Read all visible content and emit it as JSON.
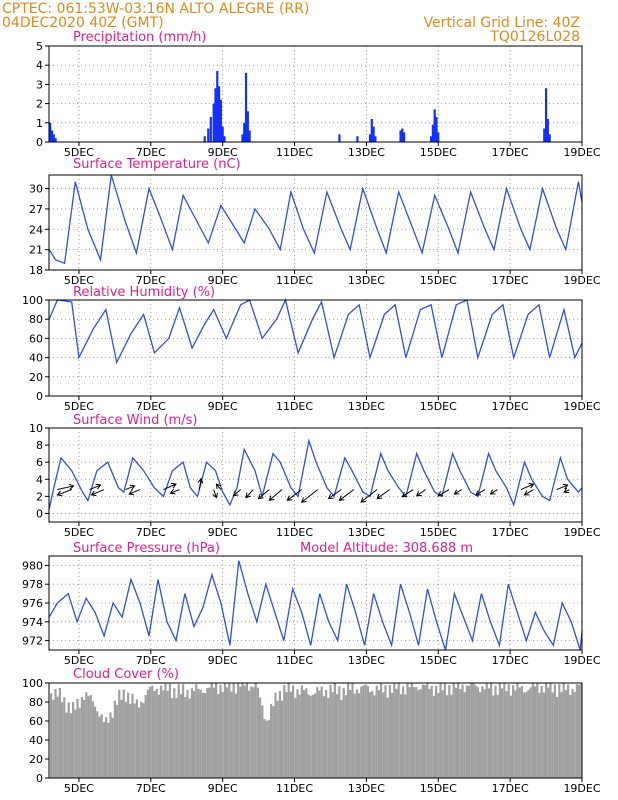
{
  "header": {
    "line1_left": "CPTEC:   061:53W-03:16N   ALTO ALEGRE (RR)",
    "line2_left": "04DEC2020 40Z (GMT)",
    "line1_right": "Vertical Grid Line: 40Z",
    "line2_right": "TQ0126L028"
  },
  "colors": {
    "header": "#e08a1e",
    "titles": "#e0208c",
    "series": "#3050e0",
    "bars": "#1430ff",
    "cloud": "#a0a0a0"
  },
  "chart_data": [
    {
      "type": "bar",
      "title": "Precipitation (mm/h)",
      "x_start_day": 4.167,
      "x_end_day": 19.0,
      "x_tick_labels": [
        "5DEC",
        "7DEC",
        "9DEC",
        "11DEC",
        "13DEC",
        "15DEC",
        "17DEC",
        "19DEC"
      ],
      "y_ticks": [
        0,
        1,
        2,
        3,
        4,
        5
      ],
      "ylim": [
        0,
        5
      ],
      "grid": true,
      "bars": [
        [
          4.2,
          1.0
        ],
        [
          4.25,
          0.6
        ],
        [
          4.3,
          0.4
        ],
        [
          4.35,
          0.2
        ],
        [
          8.5,
          0.3
        ],
        [
          8.6,
          0.7
        ],
        [
          8.67,
          1.3
        ],
        [
          8.75,
          2.0
        ],
        [
          8.8,
          2.8
        ],
        [
          8.85,
          3.7
        ],
        [
          8.9,
          2.9
        ],
        [
          8.95,
          2.2
        ],
        [
          9.0,
          0.8
        ],
        [
          9.05,
          0.3
        ],
        [
          9.55,
          0.4
        ],
        [
          9.6,
          1.0
        ],
        [
          9.65,
          3.6
        ],
        [
          9.7,
          1.6
        ],
        [
          9.75,
          0.6
        ],
        [
          12.25,
          0.4
        ],
        [
          12.75,
          0.3
        ],
        [
          13.1,
          0.4
        ],
        [
          13.15,
          1.2
        ],
        [
          13.2,
          0.8
        ],
        [
          13.25,
          0.3
        ],
        [
          13.95,
          0.6
        ],
        [
          14.0,
          0.7
        ],
        [
          14.05,
          0.5
        ],
        [
          14.8,
          0.3
        ],
        [
          14.85,
          0.9
        ],
        [
          14.9,
          1.7
        ],
        [
          14.95,
          1.3
        ],
        [
          15.0,
          0.5
        ],
        [
          17.95,
          0.7
        ],
        [
          18.0,
          2.8
        ],
        [
          18.05,
          1.2
        ],
        [
          18.1,
          0.4
        ]
      ]
    },
    {
      "type": "line",
      "title": "Surface Temperature (nC)",
      "x_tick_labels": [
        "5DEC",
        "7DEC",
        "9DEC",
        "11DEC",
        "13DEC",
        "15DEC",
        "17DEC",
        "19DEC"
      ],
      "y_ticks": [
        18,
        21,
        24,
        27,
        30
      ],
      "ylim": [
        18,
        32
      ],
      "grid": true,
      "x": [
        4.17,
        4.35,
        4.6,
        4.9,
        5.25,
        5.6,
        5.9,
        6.3,
        6.6,
        6.95,
        7.25,
        7.6,
        7.9,
        8.3,
        8.6,
        8.95,
        9.25,
        9.6,
        9.9,
        10.3,
        10.6,
        10.9,
        11.25,
        11.55,
        11.9,
        12.3,
        12.55,
        12.9,
        13.3,
        13.55,
        13.9,
        14.3,
        14.55,
        14.9,
        15.3,
        15.55,
        15.9,
        16.3,
        16.55,
        16.9,
        17.3,
        17.55,
        17.9,
        18.3,
        18.55,
        18.9,
        19.0
      ],
      "values": [
        21,
        19.5,
        19,
        31,
        24,
        19.5,
        32,
        25,
        20.5,
        30,
        26,
        21,
        29,
        25,
        22,
        27.5,
        25,
        22,
        27,
        24,
        21,
        29.5,
        24,
        20.5,
        29.5,
        24,
        21,
        30,
        24,
        20.5,
        29.5,
        24,
        20.5,
        29,
        24,
        20.5,
        29.5,
        24,
        21,
        30,
        24,
        21,
        30,
        24,
        21,
        31,
        28
      ]
    },
    {
      "type": "line",
      "title": "Relative Humidity (%)",
      "x_tick_labels": [
        "5DEC",
        "7DEC",
        "9DEC",
        "11DEC",
        "13DEC",
        "15DEC",
        "17DEC",
        "19DEC"
      ],
      "y_ticks": [
        0,
        20,
        40,
        60,
        80,
        100
      ],
      "ylim": [
        0,
        100
      ],
      "grid": true,
      "x": [
        4.17,
        4.4,
        4.8,
        5.0,
        5.4,
        5.75,
        6.05,
        6.45,
        6.8,
        7.1,
        7.5,
        7.8,
        8.15,
        8.5,
        8.75,
        9.1,
        9.5,
        9.75,
        10.1,
        10.5,
        10.75,
        11.1,
        11.5,
        11.75,
        12.1,
        12.5,
        12.8,
        13.1,
        13.5,
        13.8,
        14.1,
        14.5,
        14.8,
        15.1,
        15.5,
        15.8,
        16.1,
        16.5,
        16.8,
        17.1,
        17.5,
        17.8,
        18.1,
        18.5,
        18.8,
        19.0
      ],
      "values": [
        80,
        100,
        98,
        40,
        70,
        90,
        35,
        65,
        85,
        45,
        60,
        92,
        50,
        75,
        90,
        60,
        95,
        100,
        60,
        80,
        100,
        45,
        80,
        98,
        40,
        85,
        95,
        40,
        85,
        95,
        40,
        90,
        95,
        40,
        95,
        100,
        40,
        85,
        95,
        40,
        85,
        95,
        40,
        90,
        40,
        55
      ]
    },
    {
      "type": "line",
      "title": "Surface Wind (m/s)",
      "x_tick_labels": [
        "5DEC",
        "7DEC",
        "9DEC",
        "11DEC",
        "13DEC",
        "15DEC",
        "17DEC",
        "19DEC"
      ],
      "y_ticks": [
        0,
        2,
        4,
        6,
        8,
        10
      ],
      "ylim": [
        -1,
        10
      ],
      "grid": true,
      "x": [
        4.17,
        4.3,
        4.5,
        4.8,
        5.1,
        5.25,
        5.5,
        5.8,
        6.1,
        6.25,
        6.5,
        6.8,
        7.1,
        7.35,
        7.6,
        7.9,
        8.1,
        8.3,
        8.55,
        8.8,
        9.0,
        9.2,
        9.4,
        9.6,
        9.9,
        10.1,
        10.4,
        10.6,
        10.9,
        11.1,
        11.4,
        11.6,
        11.9,
        12.1,
        12.4,
        12.6,
        12.9,
        13.1,
        13.4,
        13.6,
        13.9,
        14.1,
        14.4,
        14.6,
        14.9,
        15.1,
        15.4,
        15.6,
        15.9,
        16.1,
        16.4,
        16.6,
        16.9,
        17.1,
        17.4,
        17.6,
        17.9,
        18.1,
        18.4,
        18.6,
        18.9,
        19.0
      ],
      "values": [
        0.5,
        3,
        6.5,
        5,
        2.5,
        1.5,
        5,
        6,
        3,
        2.5,
        6.5,
        5,
        3,
        2,
        5,
        6,
        3,
        2,
        6,
        5,
        2.5,
        1,
        3,
        7.5,
        5,
        2,
        7,
        6,
        3,
        2,
        8.5,
        6,
        3,
        2,
        6.5,
        5,
        2.5,
        2,
        7,
        5,
        3,
        2,
        7,
        5,
        2.5,
        2,
        7,
        5,
        2.5,
        2,
        7,
        5,
        3,
        1,
        6,
        4,
        2,
        1.5,
        6.5,
        4,
        2.5,
        3
      ],
      "vector_x": [
        4.4,
        4.8,
        5.3,
        5.7,
        6.3,
        6.7,
        7.35,
        7.8,
        8.35,
        8.75,
        8.95,
        9.5,
        9.85,
        10.3,
        10.65,
        11.2,
        11.65,
        12.3,
        12.65,
        13.3,
        13.65,
        14.3,
        14.65,
        15.3,
        15.65,
        16.3,
        16.65,
        17.3,
        17.65,
        18.3,
        18.65
      ],
      "vector_u": [
        1.8,
        -1.6,
        1.2,
        -1.4,
        1.0,
        -1.2,
        1.4,
        -1.0,
        0.2,
        0.3,
        -0.5,
        -0.8,
        -0.8,
        -1.2,
        -1.4,
        -1.6,
        -1.8,
        -1.4,
        -1.6,
        -1.8,
        -1.4,
        -1.2,
        -1.0,
        -1.2,
        -0.8,
        -1.0,
        -0.8,
        1.4,
        -1.0,
        1.2,
        -0.6
      ],
      "vector_v": [
        0.4,
        -0.6,
        0.5,
        -0.6,
        0.4,
        -0.5,
        0.6,
        -0.4,
        1.2,
        -0.9,
        0.6,
        -0.7,
        -0.9,
        -1.0,
        -1.2,
        -1.2,
        -1.4,
        -1.0,
        -1.2,
        -1.4,
        -1.0,
        -0.8,
        -0.7,
        -0.7,
        -0.5,
        -0.6,
        -0.5,
        0.6,
        -0.6,
        0.5,
        -0.3
      ]
    },
    {
      "type": "line",
      "title": "Surface Pressure (hPa)",
      "subtitle": "Model Altitude: 308.688  m",
      "x_tick_labels": [
        "5DEC",
        "7DEC",
        "9DEC",
        "11DEC",
        "13DEC",
        "15DEC",
        "17DEC",
        "19DEC"
      ],
      "y_ticks": [
        972,
        974,
        976,
        978,
        980
      ],
      "ylim": [
        971,
        981
      ],
      "grid": true,
      "x": [
        4.17,
        4.4,
        4.7,
        4.95,
        5.2,
        5.45,
        5.7,
        5.95,
        6.2,
        6.45,
        6.7,
        6.95,
        7.2,
        7.45,
        7.7,
        7.95,
        8.2,
        8.45,
        8.7,
        8.95,
        9.2,
        9.45,
        9.7,
        9.95,
        10.2,
        10.45,
        10.7,
        10.95,
        11.2,
        11.45,
        11.7,
        11.95,
        12.2,
        12.45,
        12.7,
        12.95,
        13.2,
        13.45,
        13.7,
        13.95,
        14.2,
        14.45,
        14.7,
        14.95,
        15.2,
        15.45,
        15.7,
        15.95,
        16.2,
        16.45,
        16.7,
        16.95,
        17.2,
        17.45,
        17.7,
        17.95,
        18.2,
        18.45,
        18.7,
        18.95,
        19.0
      ],
      "values": [
        974.5,
        976,
        977,
        974,
        976.5,
        975,
        972.5,
        976,
        974.5,
        978.5,
        976,
        972.5,
        978.5,
        974,
        972,
        977,
        973.5,
        975.5,
        979,
        976,
        971.5,
        980.5,
        977,
        974,
        978,
        975,
        972,
        977.5,
        975,
        971.5,
        977,
        974,
        972,
        978,
        975,
        971.5,
        977,
        974,
        971.5,
        978,
        975,
        971.5,
        977.5,
        974,
        971,
        977,
        974.5,
        972,
        977,
        974,
        971.5,
        978,
        975,
        972,
        975,
        973,
        971.5,
        976,
        974,
        971,
        973
      ]
    },
    {
      "type": "bar",
      "title": "Cloud Cover (%)",
      "x_tick_labels": [
        "5DEC",
        "7DEC",
        "9DEC",
        "11DEC",
        "13DEC",
        "15DEC",
        "17DEC",
        "19DEC"
      ],
      "y_ticks": [
        0,
        20,
        40,
        60,
        80,
        100
      ],
      "ylim": [
        0,
        100
      ],
      "grid": false,
      "x": [
        4.17,
        4.5,
        4.8,
        5.1,
        5.4,
        5.7,
        6.0,
        6.3,
        6.6,
        6.9,
        7.2,
        7.5,
        7.8,
        8.1,
        8.4,
        8.7,
        9.0,
        9.3,
        9.6,
        9.9,
        10.2,
        10.5,
        10.8,
        11.1,
        11.4,
        11.7,
        12.0,
        12.3,
        12.6,
        12.9,
        13.2,
        13.5,
        13.8,
        14.1,
        14.4,
        14.7,
        15.0,
        15.3,
        15.6,
        15.9,
        16.2,
        16.5,
        16.8,
        17.1,
        17.4,
        17.7,
        18.0,
        18.3,
        18.6,
        19.0
      ],
      "values": [
        90,
        85,
        70,
        88,
        80,
        55,
        80,
        90,
        75,
        92,
        95,
        94,
        90,
        92,
        93,
        96,
        97,
        98,
        99,
        97,
        60,
        88,
        95,
        92,
        90,
        91,
        93,
        92,
        94,
        95,
        93,
        94,
        96,
        95,
        97,
        96,
        94,
        96,
        97,
        98,
        96,
        95,
        97,
        95,
        94,
        96,
        97,
        95,
        94,
        96
      ]
    }
  ]
}
